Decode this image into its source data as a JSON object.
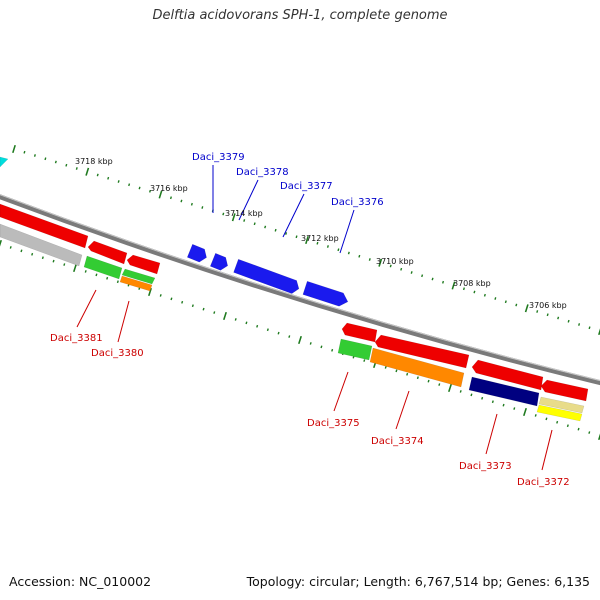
{
  "title": "Delftia acidovorans SPH-1, complete genome",
  "footer": {
    "accession": "Accession: NC_010002",
    "summary": "Topology: circular; Length: 6,767,514 bp; Genes: 6,135"
  },
  "colors": {
    "backbone": "#7a7a7a",
    "tick": "#1f7a1f",
    "label_upper": "#0000cc",
    "label_lower": "#cc0000",
    "red": "#ee0000",
    "blue": "#1a1aee",
    "green": "#33cc33",
    "orange": "#ff8800",
    "gray": "#bbbbbb",
    "navy": "#000080",
    "yellow": "#ffff00",
    "khaki": "#e8dc8a",
    "cyan": "#00dddd"
  },
  "scale_labels": [
    "3718 kbp",
    "3716 kbp",
    "3714 kbp",
    "3712 kbp",
    "3710 kbp",
    "3708 kbp",
    "3706 kbp"
  ],
  "genes_upper": [
    "Daci_3379",
    "Daci_3378",
    "Daci_3377",
    "Daci_3376"
  ],
  "genes_lower": [
    "Daci_3381",
    "Daci_3380",
    "Daci_3375",
    "Daci_3374",
    "Daci_3373",
    "Daci_3372"
  ]
}
